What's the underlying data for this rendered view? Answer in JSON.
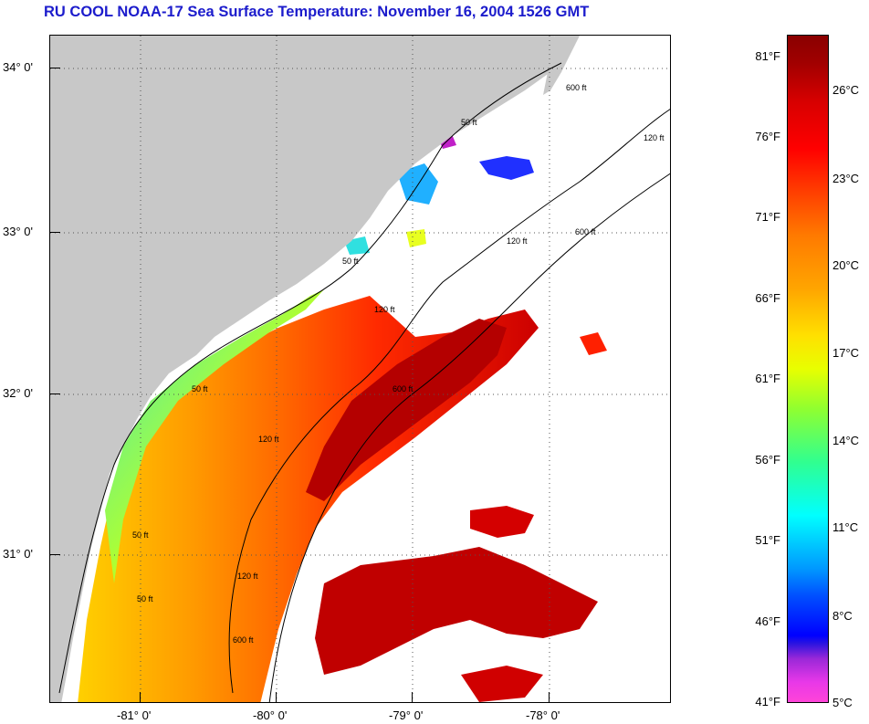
{
  "title": "RU COOL  NOAA-17  Sea Surface Temperature:  November 16, 2004 1526 GMT",
  "map": {
    "latitude_labels": [
      "34° 0'",
      "33° 0'",
      "32° 0'",
      "31° 0'"
    ],
    "longitude_labels": [
      "-81° 0'",
      "-80° 0'",
      "-79° 0'",
      "-78° 0'"
    ],
    "isobath_labels": [
      "50 ft",
      "120 ft",
      "600 ft",
      "50 ft",
      "120 ft",
      "600 ft",
      "50 ft",
      "120 ft",
      "50 ft",
      "120 ft",
      "600 ft",
      "50 ft",
      "120 ft",
      "600 ft"
    ],
    "colors": {
      "land": "#c8c8c8",
      "cloud": "#ffffff",
      "grid": "#555555"
    }
  },
  "colorbar": {
    "fahrenheit_labels": [
      "81°F",
      "76°F",
      "71°F",
      "66°F",
      "61°F",
      "56°F",
      "51°F",
      "46°F",
      "41°F"
    ],
    "celsius_labels": [
      "26°C",
      "23°C",
      "20°C",
      "17°C",
      "14°C",
      "11°C",
      "8°C",
      "5°C"
    ]
  }
}
